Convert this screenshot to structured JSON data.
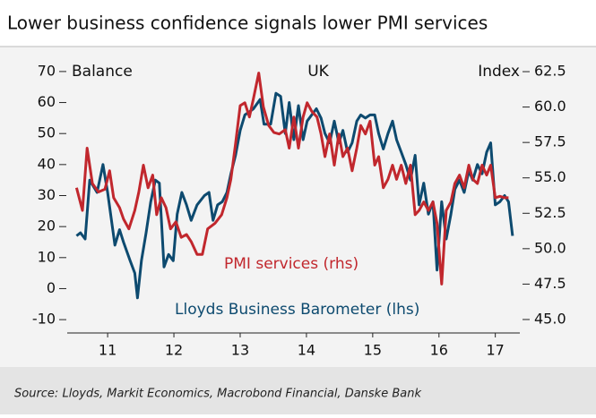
{
  "chart_data": {
    "type": "line",
    "title": "Lower business confidence signals lower PMI services",
    "subtitle": "UK",
    "ylabel": "Balance",
    "y2label": "Index",
    "source": "Source: Lloyds, Markit Economics, Macrobond Financial, Danske Bank",
    "xlim": [
      2010.89,
      2017.72
    ],
    "xticks": [
      {
        "value": 2011.5,
        "label": "11"
      },
      {
        "value": 2012.5,
        "label": "12"
      },
      {
        "value": 2013.5,
        "label": "13"
      },
      {
        "value": 2014.5,
        "label": "14"
      },
      {
        "value": 2015.5,
        "label": "15"
      },
      {
        "value": 2016.5,
        "label": "16"
      },
      {
        "value": 2017.35,
        "label": "17"
      }
    ],
    "ylim": [
      -14.3,
      74.3
    ],
    "yticks": [
      -10,
      0,
      10,
      20,
      30,
      40,
      50,
      60,
      70
    ],
    "y2lim": [
      44.05,
      63.45
    ],
    "y2ticks": [
      {
        "value": 45,
        "label": "45.0"
      },
      47.5,
      {
        "value": 50,
        "label": "50.0"
      },
      52.5,
      {
        "value": 55,
        "label": "55.0"
      },
      57.5,
      {
        "value": 60,
        "label": "60.0"
      },
      62.5
    ],
    "series": [
      {
        "name": "Lloyds Business Barometer (lhs)",
        "color": "#0d4a6f",
        "axis": "y",
        "x": [
          2011.03,
          2011.09,
          2011.16,
          2011.23,
          2011.34,
          2011.43,
          2011.5,
          2011.61,
          2011.68,
          2011.74,
          2011.84,
          2011.91,
          2011.95,
          2012.01,
          2012.08,
          2012.15,
          2012.22,
          2012.28,
          2012.35,
          2012.42,
          2012.49,
          2012.55,
          2012.62,
          2012.69,
          2012.76,
          2012.85,
          2012.96,
          2013.03,
          2013.09,
          2013.16,
          2013.23,
          2013.3,
          2013.36,
          2013.43,
          2013.5,
          2013.57,
          2013.64,
          2013.7,
          2013.8,
          2013.86,
          2013.96,
          2014.04,
          2014.11,
          2014.18,
          2014.24,
          2014.31,
          2014.38,
          2014.45,
          2014.51,
          2014.58,
          2014.65,
          2014.72,
          2014.78,
          2014.85,
          2014.92,
          2014.99,
          2015.05,
          2015.12,
          2015.19,
          2015.26,
          2015.32,
          2015.39,
          2015.46,
          2015.53,
          2015.59,
          2015.66,
          2015.73,
          2015.8,
          2015.86,
          2015.93,
          2016.0,
          2016.07,
          2016.14,
          2016.2,
          2016.27,
          2016.34,
          2016.41,
          2016.47,
          2016.54,
          2016.61,
          2016.68,
          2016.74,
          2016.81,
          2016.88,
          2016.95,
          2017.01,
          2017.08,
          2017.15,
          2017.22,
          2017.28,
          2017.35,
          2017.42,
          2017.49,
          2017.55,
          2017.61
        ],
        "values": [
          17,
          18,
          16,
          35,
          31,
          40,
          31,
          14,
          19,
          15,
          9,
          5,
          -3,
          9,
          18,
          28,
          35,
          34,
          7,
          11,
          9,
          24,
          31,
          27,
          22,
          27,
          30,
          31,
          22,
          27,
          28,
          31,
          37,
          43,
          51,
          56,
          57,
          58,
          61,
          53,
          53,
          63,
          62,
          50,
          60,
          48,
          59,
          48,
          54,
          56,
          58,
          55,
          50,
          47,
          54,
          47,
          51,
          44,
          47,
          54,
          56,
          55,
          56,
          56,
          50,
          45,
          50,
          54,
          48,
          44,
          40,
          35,
          43,
          27,
          34,
          24,
          28,
          6,
          28,
          16,
          24,
          32,
          35,
          31,
          38,
          35,
          40,
          37,
          44,
          47,
          27,
          28,
          30,
          28,
          17
        ]
      },
      {
        "name": "PMI services (rhs)",
        "color": "#c1272d",
        "axis": "y2",
        "x": [
          2011.03,
          2011.12,
          2011.19,
          2011.27,
          2011.36,
          2011.46,
          2011.53,
          2011.59,
          2011.68,
          2011.74,
          2011.82,
          2011.91,
          2011.97,
          2012.04,
          2012.11,
          2012.18,
          2012.24,
          2012.31,
          2012.38,
          2012.45,
          2012.53,
          2012.61,
          2012.69,
          2012.76,
          2012.85,
          2012.93,
          2013.01,
          2013.12,
          2013.22,
          2013.3,
          2013.36,
          2013.43,
          2013.5,
          2013.57,
          2013.64,
          2013.7,
          2013.78,
          2013.85,
          2013.93,
          2014.01,
          2014.09,
          2014.18,
          2014.24,
          2014.31,
          2014.38,
          2014.45,
          2014.51,
          2014.58,
          2014.66,
          2014.72,
          2014.78,
          2014.85,
          2014.92,
          2014.99,
          2015.05,
          2015.12,
          2015.19,
          2015.26,
          2015.32,
          2015.39,
          2015.46,
          2015.53,
          2015.59,
          2015.66,
          2015.73,
          2015.8,
          2015.86,
          2015.93,
          2016.0,
          2016.07,
          2016.14,
          2016.2,
          2016.27,
          2016.34,
          2016.41,
          2016.47,
          2016.54,
          2016.61,
          2016.68,
          2016.74,
          2016.81,
          2016.88,
          2016.95,
          2017.01,
          2017.08,
          2017.15,
          2017.22,
          2017.28,
          2017.35,
          2017.42,
          2017.49,
          2017.55
        ],
        "values": [
          54.3,
          52.7,
          57.1,
          54.6,
          54.0,
          54.2,
          55.5,
          53.6,
          52.9,
          52.1,
          51.4,
          52.7,
          54.0,
          55.9,
          54.3,
          55.2,
          52.4,
          53.6,
          52.9,
          51.4,
          51.9,
          50.8,
          51.0,
          50.5,
          49.6,
          49.6,
          51.4,
          51.8,
          52.4,
          53.6,
          54.9,
          57.4,
          60.1,
          60.3,
          59.3,
          60.6,
          62.4,
          60.0,
          58.7,
          58.2,
          58.1,
          58.4,
          57.1,
          59.3,
          57.1,
          59.3,
          60.3,
          59.7,
          59.3,
          58.1,
          56.5,
          58.1,
          55.9,
          58.1,
          56.5,
          57.1,
          55.5,
          57.1,
          58.7,
          58.1,
          59.0,
          55.9,
          56.5,
          54.3,
          54.9,
          55.9,
          54.9,
          55.9,
          54.6,
          55.9,
          52.4,
          52.7,
          53.3,
          52.7,
          53.3,
          51.8,
          47.5,
          52.7,
          53.3,
          54.6,
          55.2,
          54.3,
          55.9,
          54.9,
          54.6,
          55.9,
          55.2,
          55.9,
          53.6,
          53.7,
          53.6,
          53.6
        ]
      }
    ]
  }
}
